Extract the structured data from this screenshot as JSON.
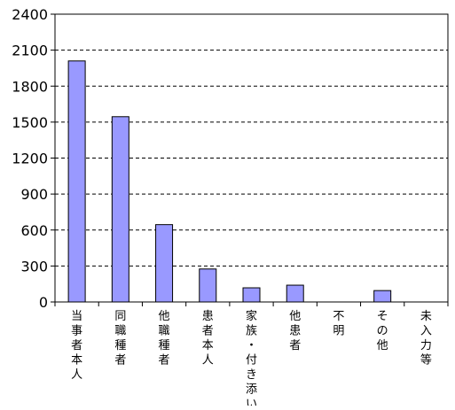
{
  "chart_data": {
    "type": "bar",
    "categories": [
      "当事者本人",
      "同職種者",
      "他職種者",
      "患者本人",
      "家族・付き添い",
      "他患者",
      "不明",
      "その他",
      "未入力等"
    ],
    "series": [
      {
        "values": [
          2010,
          1545,
          645,
          275,
          118,
          140,
          0,
          95,
          0
        ]
      }
    ],
    "ylim": [
      0,
      2400
    ],
    "yticks": [
      0,
      300,
      600,
      900,
      1200,
      1500,
      1800,
      2100,
      2400
    ],
    "grid": true,
    "legend": "none",
    "colors": {
      "bar_fill": "#9999ff",
      "bar_stroke": "#000000",
      "grid": "#000000",
      "background": "#ffffff"
    }
  }
}
